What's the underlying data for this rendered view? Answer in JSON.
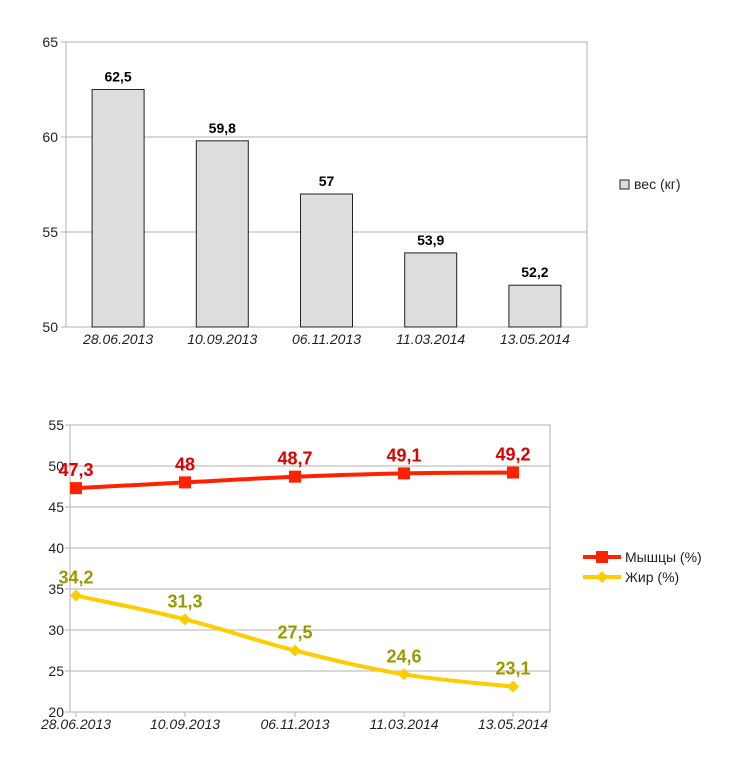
{
  "chart_data": [
    {
      "type": "bar",
      "categories": [
        "28.06.2013",
        "10.09.2013",
        "06.11.2013",
        "11.03.2014",
        "13.05.2014"
      ],
      "series": [
        {
          "name": "вес (кг)",
          "values": [
            62.5,
            59.8,
            57,
            53.9,
            52.2
          ],
          "color": "#dddddd"
        }
      ],
      "value_labels": [
        "62,5",
        "59,8",
        "57",
        "53,9",
        "52,2"
      ],
      "ylim": [
        50,
        65
      ],
      "yticks": [
        50,
        55,
        60,
        65
      ],
      "grid": true,
      "legend_position": "right",
      "title": "",
      "xlabel": "",
      "ylabel": ""
    },
    {
      "type": "line",
      "categories": [
        "28.06.2013",
        "10.09.2013",
        "06.11.2013",
        "11.03.2014",
        "13.05.2014"
      ],
      "series": [
        {
          "name": "Мышцы (%)",
          "values": [
            47.3,
            48,
            48.7,
            49.1,
            49.2
          ],
          "labels": [
            "47,3",
            "48",
            "48,7",
            "49,1",
            "49,2"
          ],
          "color": "#ff2200",
          "label_color": "#dd0000",
          "marker": "square"
        },
        {
          "name": "Жир (%)",
          "values": [
            34.2,
            31.3,
            27.5,
            24.6,
            23.1
          ],
          "labels": [
            "34,2",
            "31,3",
            "27,5",
            "24,6",
            "23,1"
          ],
          "color": "#ffcc00",
          "label_color": "#999900",
          "marker": "diamond"
        }
      ],
      "ylim": [
        20,
        55
      ],
      "yticks": [
        20,
        25,
        30,
        35,
        40,
        45,
        50,
        55
      ],
      "grid": true,
      "legend_position": "right",
      "title": "",
      "xlabel": "",
      "ylabel": ""
    }
  ]
}
